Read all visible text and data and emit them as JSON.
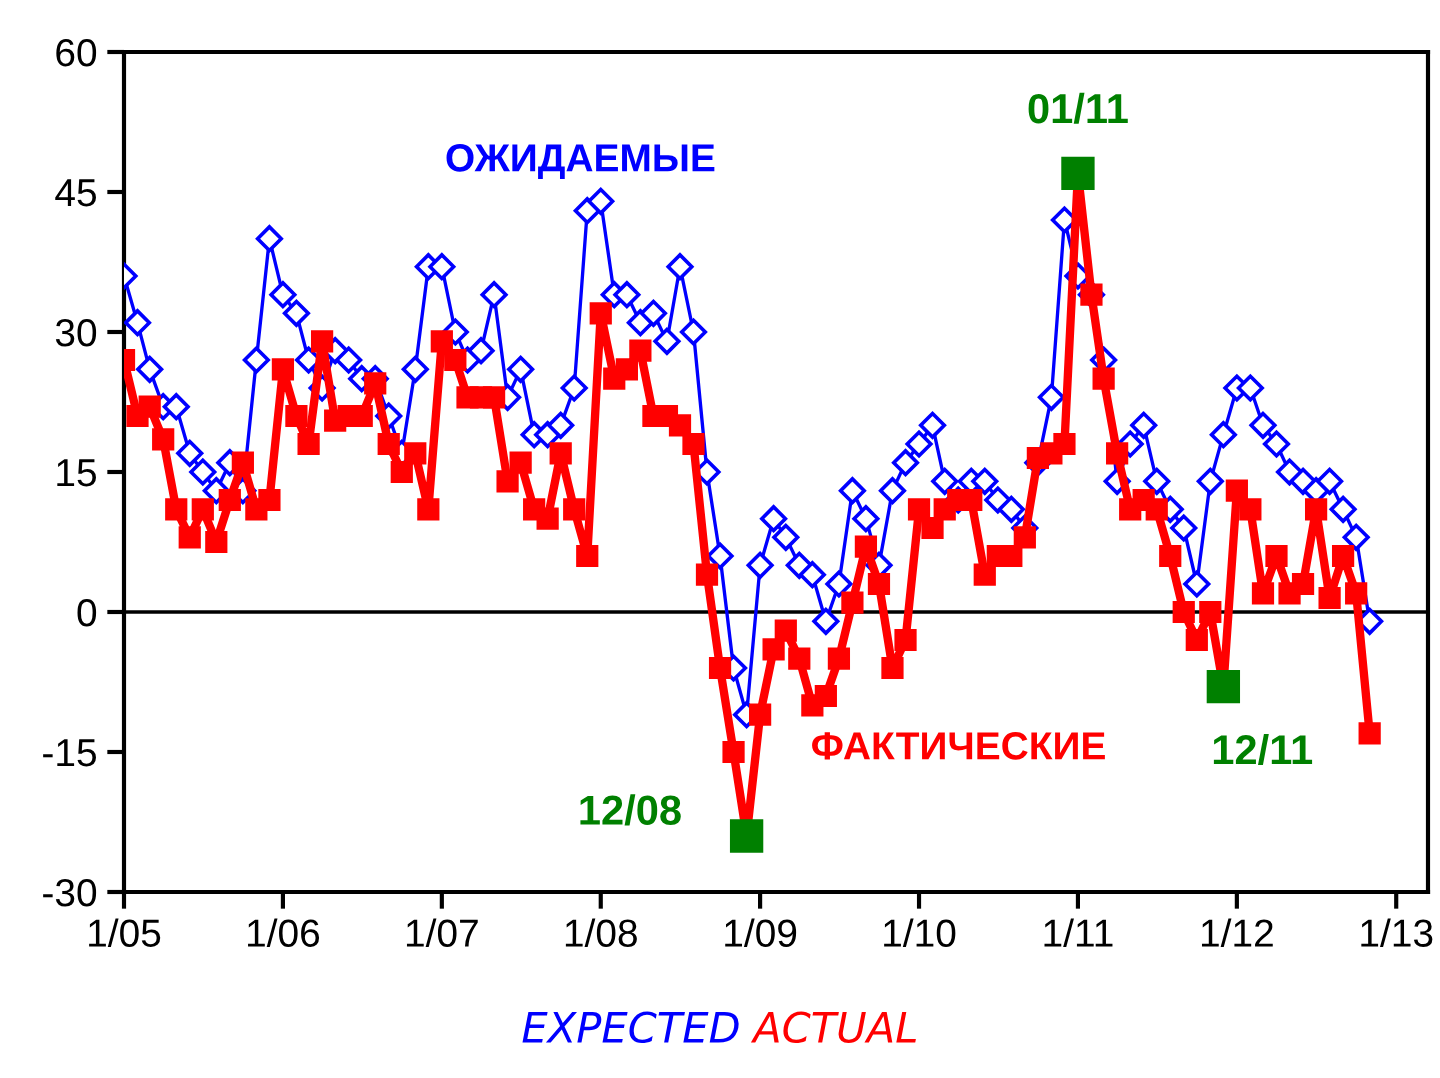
{
  "chart_data": {
    "type": "line",
    "x": [
      "2005-01",
      "2005-02",
      "2005-03",
      "2005-04",
      "2005-05",
      "2005-06",
      "2005-07",
      "2005-08",
      "2005-09",
      "2005-10",
      "2005-11",
      "2005-12",
      "2006-01",
      "2006-02",
      "2006-03",
      "2006-04",
      "2006-05",
      "2006-06",
      "2006-07",
      "2006-08",
      "2006-09",
      "2006-10",
      "2006-11",
      "2006-12",
      "2007-01",
      "2007-02",
      "2007-03",
      "2007-04",
      "2007-05",
      "2007-06",
      "2007-07",
      "2007-08",
      "2007-09",
      "2007-10",
      "2007-11",
      "2007-12",
      "2008-01",
      "2008-02",
      "2008-03",
      "2008-04",
      "2008-05",
      "2008-06",
      "2008-07",
      "2008-08",
      "2008-09",
      "2008-10",
      "2008-11",
      "2008-12",
      "2009-01",
      "2009-02",
      "2009-03",
      "2009-04",
      "2009-05",
      "2009-06",
      "2009-07",
      "2009-08",
      "2009-09",
      "2009-10",
      "2009-11",
      "2009-12",
      "2010-01",
      "2010-02",
      "2010-03",
      "2010-04",
      "2010-05",
      "2010-06",
      "2010-07",
      "2010-08",
      "2010-09",
      "2010-10",
      "2010-11",
      "2010-12",
      "2011-01",
      "2011-02",
      "2011-03",
      "2011-04",
      "2011-05",
      "2011-06",
      "2011-07",
      "2011-08",
      "2011-09",
      "2011-10",
      "2011-11",
      "2011-12",
      "2012-01",
      "2012-02",
      "2012-03",
      "2012-04",
      "2012-05",
      "2012-06",
      "2012-07",
      "2012-08",
      "2012-09",
      "2012-10",
      "2012-11"
    ],
    "series": [
      {
        "name": "ОЖИДАЕМЫЕ",
        "color": "#0000ff",
        "marker": "diamond",
        "values": [
          36,
          31,
          26,
          22,
          22,
          17,
          15,
          13,
          16,
          13,
          27,
          40,
          34,
          32,
          27,
          24,
          28,
          27,
          25,
          25,
          21,
          17,
          26,
          37,
          37,
          30,
          27,
          28,
          34,
          23,
          26,
          19,
          19,
          20,
          24,
          43,
          44,
          34,
          34,
          31,
          32,
          29,
          37,
          30,
          15,
          6,
          -6,
          -11,
          5,
          10,
          8,
          5,
          4,
          -1,
          3,
          13,
          10,
          5,
          13,
          16,
          18,
          20,
          14,
          12,
          14,
          14,
          12,
          11,
          9,
          16,
          23,
          42,
          36,
          34,
          27,
          14,
          18,
          20,
          14,
          11,
          9,
          3,
          14,
          19,
          24,
          24,
          20,
          18,
          15,
          14,
          13,
          14,
          11,
          8,
          -1
        ]
      },
      {
        "name": "ФАКТИЧЕСКИЕ",
        "color": "#ff0000",
        "marker": "square",
        "values": [
          27,
          21,
          22,
          18.5,
          11,
          8,
          11,
          7.5,
          12,
          16,
          11,
          12,
          26,
          21,
          18,
          29,
          20.5,
          21,
          21,
          24.5,
          18,
          15,
          17,
          11,
          29,
          27,
          23,
          23,
          23,
          14,
          16,
          11,
          10,
          17,
          11,
          6,
          32,
          25,
          26,
          28,
          21,
          21,
          20,
          18,
          4,
          -6,
          -15,
          -24,
          -11,
          -4,
          -2,
          -5,
          -10,
          -9,
          -5,
          1,
          7,
          3,
          -6,
          -3,
          11,
          9,
          11,
          12,
          12,
          4,
          6,
          6,
          8,
          16.5,
          17,
          18,
          47,
          34,
          25,
          17,
          11,
          12,
          11,
          6,
          0,
          -3,
          0,
          -8,
          13,
          11,
          2,
          6,
          2,
          3,
          11,
          1.5,
          6,
          2,
          -13
        ],
        "colors": [
          "#ff0000",
          "#ff0000",
          "#ff0000",
          "#ff0000",
          "#ff0000",
          "#ff0000",
          "#ff0000",
          "#ff0000",
          "#ff0000",
          "#ff0000",
          "#ff0000",
          "#ff0000",
          "#ff0000",
          "#ff0000",
          "#ff0000",
          "#ff0000",
          "#ff0000",
          "#ff0000",
          "#ff0000",
          "#ff0000",
          "#ff0000",
          "#ff0000",
          "#ff0000",
          "#ff0000",
          "#ff0000",
          "#ff0000",
          "#ff0000",
          "#ff0000",
          "#ff0000",
          "#ff0000",
          "#ff0000",
          "#ff0000",
          "#ff0000",
          "#ff0000",
          "#ff0000",
          "#ff0000",
          "#ff0000",
          "#ff0000",
          "#ff0000",
          "#ff0000",
          "#ff0000",
          "#ff0000",
          "#ff0000",
          "#ff0000",
          "#ff0000",
          "#ff0000",
          "#ff0000",
          "#008000",
          "#ff0000",
          "#ff0000",
          "#ff0000",
          "#ff0000",
          "#ff0000",
          "#ff0000",
          "#ff0000",
          "#ff0000",
          "#ff0000",
          "#ff0000",
          "#ff0000",
          "#ff0000",
          "#ff0000",
          "#ff0000",
          "#ff0000",
          "#ff0000",
          "#ff0000",
          "#ff0000",
          "#ff0000",
          "#ff0000",
          "#ff0000",
          "#ff0000",
          "#ff0000",
          "#ff0000",
          "#008000",
          "#ff0000",
          "#ff0000",
          "#ff0000",
          "#ff0000",
          "#ff0000",
          "#ff0000",
          "#ff0000",
          "#ff0000",
          "#ff0000",
          "#ff0000",
          "#008000",
          "#ff0000",
          "#ff0000",
          "#ff0000",
          "#ff0000",
          "#ff0000",
          "#ff0000",
          "#ff0000",
          "#ff0000",
          "#ff0000",
          "#ff0000",
          "#ff0000"
        ]
      }
    ],
    "annotations": [
      {
        "text": "12/08",
        "x": "2008-12",
        "y": -24
      },
      {
        "text": "01/11",
        "x": "2011-01",
        "y": 47
      },
      {
        "text": "12/11",
        "x": "2011-12",
        "y": -8
      },
      "EXPECTED",
      "ACTUAL"
    ],
    "xlim": [
      "2005-01",
      "2013-03-15"
    ],
    "xticks": [
      {
        "value": "2005-01",
        "label": "1/05"
      },
      {
        "value": "2006-01",
        "label": "1/06"
      },
      {
        "value": "2007-01",
        "label": "1/07"
      },
      {
        "value": "2008-01",
        "label": "1/08"
      },
      {
        "value": "2009-01",
        "label": "1/09"
      },
      {
        "value": "2010-01",
        "label": "1/10"
      },
      {
        "value": "2011-01",
        "label": "1/11"
      },
      {
        "value": "2012-01",
        "label": "1/12"
      },
      {
        "value": "2013-01",
        "label": "1/13"
      }
    ],
    "ylim": [
      -30,
      60
    ],
    "yticks": [
      -30,
      -15,
      0,
      15,
      30,
      45,
      60
    ],
    "ref_lines": [
      {
        "axis": "y",
        "value": 0,
        "color": "#000000"
      }
    ],
    "grid": false
  }
}
